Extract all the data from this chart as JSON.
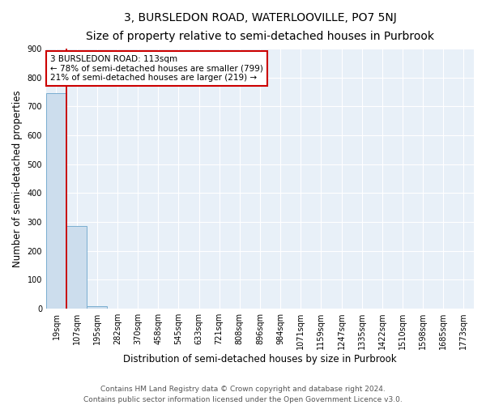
{
  "title": "3, BURSLEDON ROAD, WATERLOOVILLE, PO7 5NJ",
  "subtitle": "Size of property relative to semi-detached houses in Purbrook",
  "xlabel": "Distribution of semi-detached houses by size in Purbrook",
  "ylabel": "Number of semi-detached properties",
  "categories": [
    "19sqm",
    "107sqm",
    "195sqm",
    "282sqm",
    "370sqm",
    "458sqm",
    "545sqm",
    "633sqm",
    "721sqm",
    "808sqm",
    "896sqm",
    "984sqm",
    "1071sqm",
    "1159sqm",
    "1247sqm",
    "1335sqm",
    "1422sqm",
    "1510sqm",
    "1598sqm",
    "1685sqm",
    "1773sqm"
  ],
  "values": [
    745,
    285,
    8,
    0,
    0,
    0,
    0,
    0,
    0,
    0,
    0,
    0,
    0,
    0,
    0,
    0,
    0,
    0,
    0,
    0,
    0
  ],
  "bar_color": "#ccdded",
  "bar_edge_color": "#7aaed0",
  "property_line_color": "#cc0000",
  "property_line_bin": 1,
  "ylim": [
    0,
    900
  ],
  "yticks": [
    0,
    100,
    200,
    300,
    400,
    500,
    600,
    700,
    800,
    900
  ],
  "annotation_line1": "3 BURSLEDON ROAD: 113sqm",
  "annotation_line2": "← 78% of semi-detached houses are smaller (799)",
  "annotation_line3": "21% of semi-detached houses are larger (219) →",
  "annotation_box_color": "#ffffff",
  "annotation_box_edge_color": "#cc0000",
  "footnote1": "Contains HM Land Registry data © Crown copyright and database right 2024.",
  "footnote2": "Contains public sector information licensed under the Open Government Licence v3.0.",
  "background_color": "#ffffff",
  "plot_bg_color": "#e8f0f8",
  "title_fontsize": 10,
  "subtitle_fontsize": 9,
  "annotation_fontsize": 7.5,
  "tick_fontsize": 7,
  "label_fontsize": 8.5,
  "footnote_fontsize": 6.5,
  "grid_color": "#ffffff"
}
